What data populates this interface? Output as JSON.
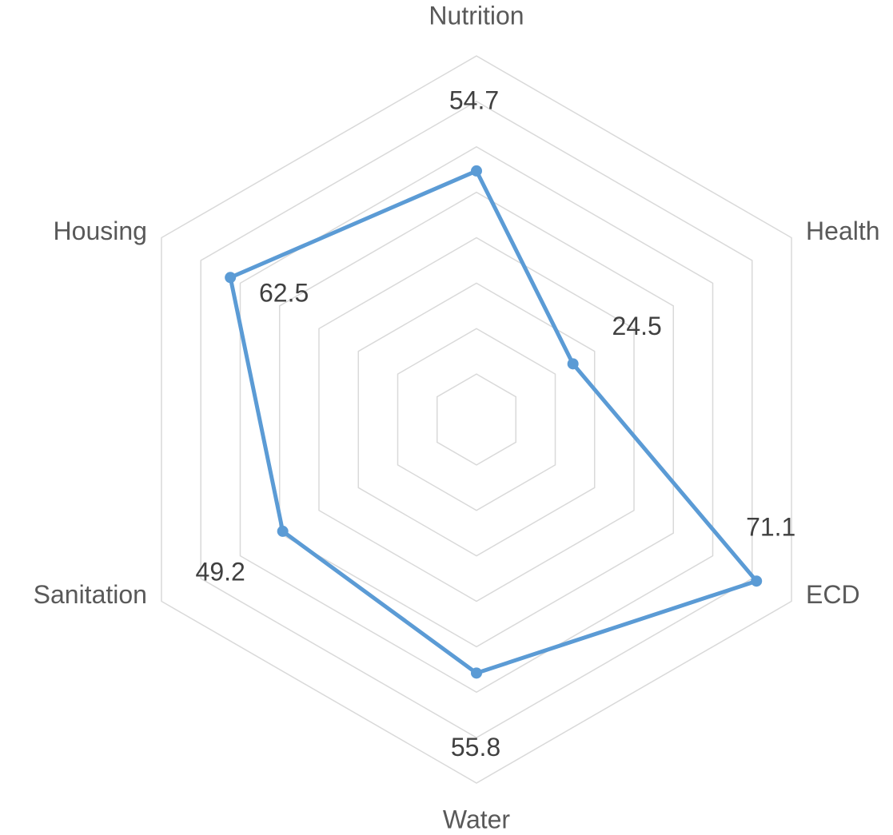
{
  "chart_data": {
    "type": "radar",
    "categories": [
      "Nutrition",
      "Health",
      "ECD",
      "Water",
      "Sanitation",
      "Housing"
    ],
    "series": [
      {
        "name": null,
        "color": "#5b9bd5",
        "values": [
          54.7,
          24.5,
          71.1,
          55.8,
          49.2,
          62.5
        ]
      }
    ],
    "ylim": [
      0,
      80
    ],
    "yticks": [
      0,
      10,
      20,
      30,
      40,
      50,
      60,
      70,
      80
    ],
    "grid": true,
    "data_labels": true
  }
}
